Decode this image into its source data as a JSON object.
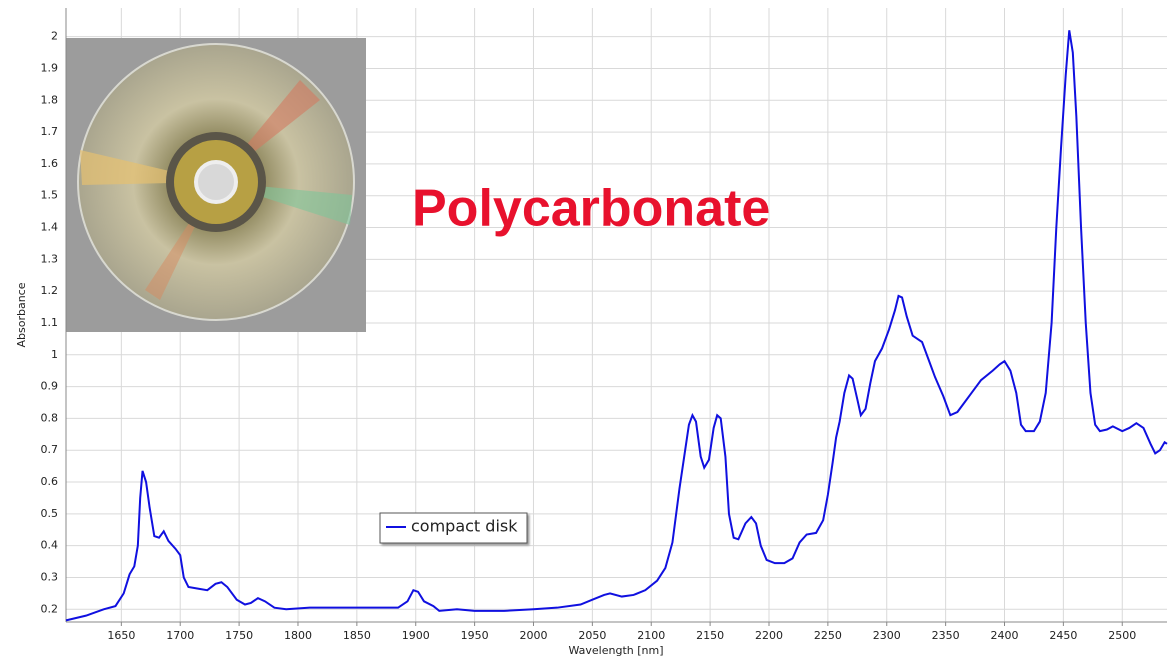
{
  "chart_data": {
    "type": "line",
    "annotation": "Polycarbonate",
    "x_label": "Wavelength [nm]",
    "y_label": "Absorbance",
    "grid": true,
    "xlim": [
      1603,
      2538
    ],
    "ylim": [
      0.16,
      2.09
    ],
    "xticks": [
      1650,
      1700,
      1750,
      1800,
      1850,
      1900,
      1950,
      2000,
      2050,
      2100,
      2150,
      2200,
      2250,
      2300,
      2350,
      2400,
      2450,
      2500
    ],
    "yticks": [
      0.2,
      0.3,
      0.4,
      0.5,
      0.6,
      0.7,
      0.8,
      0.9,
      1,
      1.1,
      1.2,
      1.3,
      1.4,
      1.5,
      1.6,
      1.7,
      1.8,
      1.9,
      2
    ],
    "x": [
      1603,
      1620,
      1635,
      1645,
      1652,
      1657,
      1661,
      1664,
      1666,
      1668,
      1671,
      1674,
      1678,
      1682,
      1686,
      1690,
      1696,
      1700,
      1703,
      1707,
      1715,
      1723,
      1730,
      1735,
      1740,
      1748,
      1755,
      1760,
      1766,
      1772,
      1780,
      1790,
      1810,
      1830,
      1850,
      1870,
      1885,
      1893,
      1898,
      1902,
      1907,
      1915,
      1920,
      1935,
      1950,
      1975,
      2000,
      2020,
      2040,
      2050,
      2060,
      2065,
      2075,
      2085,
      2095,
      2105,
      2112,
      2118,
      2124,
      2128,
      2132,
      2135,
      2138,
      2142,
      2145,
      2149,
      2153,
      2156,
      2159,
      2163,
      2166,
      2170,
      2174,
      2180,
      2185,
      2189,
      2193,
      2198,
      2205,
      2213,
      2220,
      2226,
      2232,
      2240,
      2246,
      2250,
      2254,
      2257,
      2260,
      2264,
      2268,
      2271,
      2275,
      2278,
      2282,
      2286,
      2290,
      2296,
      2302,
      2307,
      2310,
      2313,
      2317,
      2322,
      2330,
      2336,
      2341,
      2348,
      2354,
      2360,
      2366,
      2372,
      2380,
      2390,
      2396,
      2400,
      2405,
      2410,
      2414,
      2418,
      2425,
      2430,
      2435,
      2440,
      2444,
      2448,
      2452,
      2455,
      2458,
      2461,
      2465,
      2469,
      2473,
      2477,
      2481,
      2487,
      2492,
      2500,
      2506,
      2512,
      2518,
      2524,
      2528,
      2532,
      2536,
      2538
    ],
    "series": [
      {
        "name": "compact disk",
        "color": "#1010e0",
        "values": [
          0.165,
          0.18,
          0.2,
          0.21,
          0.25,
          0.31,
          0.335,
          0.4,
          0.55,
          0.635,
          0.6,
          0.52,
          0.43,
          0.425,
          0.445,
          0.415,
          0.39,
          0.37,
          0.3,
          0.27,
          0.265,
          0.26,
          0.28,
          0.285,
          0.27,
          0.23,
          0.215,
          0.22,
          0.235,
          0.225,
          0.205,
          0.2,
          0.205,
          0.205,
          0.205,
          0.205,
          0.205,
          0.225,
          0.26,
          0.255,
          0.225,
          0.21,
          0.195,
          0.2,
          0.195,
          0.195,
          0.2,
          0.205,
          0.215,
          0.23,
          0.245,
          0.25,
          0.24,
          0.245,
          0.26,
          0.29,
          0.33,
          0.41,
          0.58,
          0.68,
          0.78,
          0.81,
          0.79,
          0.68,
          0.645,
          0.67,
          0.77,
          0.81,
          0.8,
          0.68,
          0.5,
          0.425,
          0.42,
          0.47,
          0.49,
          0.47,
          0.4,
          0.355,
          0.345,
          0.345,
          0.36,
          0.41,
          0.435,
          0.44,
          0.48,
          0.56,
          0.66,
          0.74,
          0.79,
          0.88,
          0.935,
          0.925,
          0.86,
          0.81,
          0.83,
          0.91,
          0.98,
          1.02,
          1.08,
          1.14,
          1.185,
          1.18,
          1.12,
          1.06,
          1.04,
          0.98,
          0.93,
          0.87,
          0.81,
          0.82,
          0.85,
          0.88,
          0.92,
          0.95,
          0.97,
          0.98,
          0.95,
          0.88,
          0.78,
          0.76,
          0.76,
          0.79,
          0.88,
          1.1,
          1.4,
          1.65,
          1.88,
          2.02,
          1.95,
          1.75,
          1.4,
          1.1,
          0.88,
          0.78,
          0.76,
          0.765,
          0.775,
          0.76,
          0.77,
          0.785,
          0.77,
          0.72,
          0.69,
          0.7,
          0.725,
          0.72
        ]
      }
    ]
  }
}
